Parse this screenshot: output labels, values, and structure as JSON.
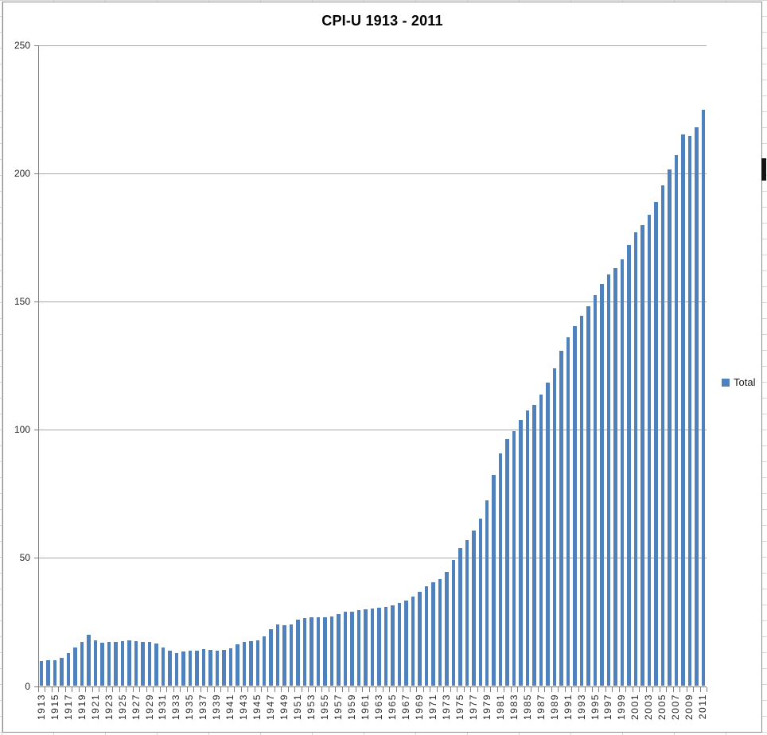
{
  "chart_data": {
    "type": "bar",
    "title": "CPI-U 1913 - 2011",
    "xlabel": "",
    "ylabel": "",
    "ylim": [
      0,
      250
    ],
    "y_ticks": [
      0,
      50,
      100,
      150,
      200,
      250
    ],
    "grid": "horizontal",
    "legend_position": "right",
    "x_label_rotation": -90,
    "x_labels_every": 2,
    "categories": [
      1913,
      1914,
      1915,
      1916,
      1917,
      1918,
      1919,
      1920,
      1921,
      1922,
      1923,
      1924,
      1925,
      1926,
      1927,
      1928,
      1929,
      1930,
      1931,
      1932,
      1933,
      1934,
      1935,
      1936,
      1937,
      1938,
      1939,
      1940,
      1941,
      1942,
      1943,
      1944,
      1945,
      1946,
      1947,
      1948,
      1949,
      1950,
      1951,
      1952,
      1953,
      1954,
      1955,
      1956,
      1957,
      1958,
      1959,
      1960,
      1961,
      1962,
      1963,
      1964,
      1965,
      1966,
      1967,
      1968,
      1969,
      1970,
      1971,
      1972,
      1973,
      1974,
      1975,
      1976,
      1977,
      1978,
      1979,
      1980,
      1981,
      1982,
      1983,
      1984,
      1985,
      1986,
      1987,
      1988,
      1989,
      1990,
      1991,
      1992,
      1993,
      1994,
      1995,
      1996,
      1997,
      1998,
      1999,
      2000,
      2001,
      2002,
      2003,
      2004,
      2005,
      2006,
      2007,
      2008,
      2009,
      2010,
      2011
    ],
    "series": [
      {
        "name": "Total",
        "values": [
          9.9,
          10.0,
          10.1,
          10.9,
          12.8,
          15.1,
          17.3,
          20.0,
          17.9,
          16.8,
          17.1,
          17.1,
          17.5,
          17.7,
          17.4,
          17.1,
          17.1,
          16.7,
          15.2,
          13.7,
          13.0,
          13.4,
          13.7,
          13.9,
          14.4,
          14.1,
          13.9,
          14.0,
          14.7,
          16.3,
          17.3,
          17.6,
          18.0,
          19.5,
          22.3,
          24.1,
          23.8,
          24.1,
          26.0,
          26.5,
          26.7,
          26.9,
          26.8,
          27.2,
          28.1,
          28.9,
          29.1,
          29.6,
          29.9,
          30.2,
          30.6,
          31.0,
          31.5,
          32.4,
          33.4,
          34.8,
          36.7,
          38.8,
          40.5,
          41.8,
          44.4,
          49.3,
          53.8,
          56.9,
          60.6,
          65.2,
          72.6,
          82.4,
          90.9,
          96.5,
          99.6,
          103.9,
          107.6,
          109.6,
          113.6,
          118.3,
          124.0,
          130.7,
          136.2,
          140.3,
          144.5,
          148.2,
          152.4,
          156.9,
          160.5,
          163.0,
          166.6,
          172.2,
          177.1,
          179.9,
          184.0,
          188.9,
          195.3,
          201.6,
          207.3,
          215.3,
          214.5,
          218.1,
          224.9
        ]
      }
    ]
  },
  "legend": {
    "label": "Total"
  },
  "colors": {
    "bar": "#4f81bd",
    "gridline": "#a8a8a8",
    "axis": "#7f7f7f",
    "label_text": "#262626",
    "title_text": "#000000",
    "chart_border": "#8c8c8c",
    "sheet_gridline": "#d6d6d6",
    "scroll_thumb": "#141414"
  }
}
